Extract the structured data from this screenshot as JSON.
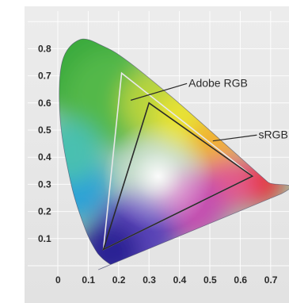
{
  "chart_data": {
    "type": "scatter",
    "title": "",
    "xlabel": "",
    "ylabel": "",
    "xlim": [
      0,
      0.75
    ],
    "ylim": [
      0,
      0.85
    ],
    "grid": true,
    "x_ticks": [
      "0",
      "0.1",
      "0.2",
      "0.3",
      "0.4",
      "0.5",
      "0.6",
      "0.7",
      "0."
    ],
    "y_ticks": [
      "0.8",
      "0.7",
      "0.6",
      "0.5",
      "0.4",
      "0.3",
      "0.2",
      "0.1"
    ],
    "spectral_locus": [
      {
        "x": 0.175,
        "y": 0.005
      },
      {
        "x": 0.174,
        "y": 0.005
      },
      {
        "x": 0.165,
        "y": 0.011
      },
      {
        "x": 0.144,
        "y": 0.03
      },
      {
        "x": 0.124,
        "y": 0.058
      },
      {
        "x": 0.091,
        "y": 0.133
      },
      {
        "x": 0.045,
        "y": 0.295
      },
      {
        "x": 0.008,
        "y": 0.538
      },
      {
        "x": 0.014,
        "y": 0.75
      },
      {
        "x": 0.074,
        "y": 0.834
      },
      {
        "x": 0.155,
        "y": 0.806
      },
      {
        "x": 0.23,
        "y": 0.754
      },
      {
        "x": 0.373,
        "y": 0.624
      },
      {
        "x": 0.512,
        "y": 0.487
      },
      {
        "x": 0.607,
        "y": 0.392
      },
      {
        "x": 0.69,
        "y": 0.309
      },
      {
        "x": 0.735,
        "y": 0.265
      }
    ],
    "series": [
      {
        "name": "Adobe RGB",
        "color": "#e8e8e8",
        "points": [
          {
            "x": 0.64,
            "y": 0.33
          },
          {
            "x": 0.21,
            "y": 0.71
          },
          {
            "x": 0.15,
            "y": 0.06
          }
        ]
      },
      {
        "name": "sRGB",
        "color": "#2a2a2a",
        "points": [
          {
            "x": 0.64,
            "y": 0.33
          },
          {
            "x": 0.3,
            "y": 0.6
          },
          {
            "x": 0.15,
            "y": 0.06
          }
        ]
      }
    ],
    "annotations": [
      {
        "text": "Adobe RGB",
        "target": {
          "x": 0.24,
          "y": 0.61
        },
        "label_at": {
          "x": 0.43,
          "y": 0.66
        }
      },
      {
        "text": "sRGB",
        "target": {
          "x": 0.51,
          "y": 0.46
        },
        "label_at": {
          "x": 0.66,
          "y": 0.47
        }
      }
    ],
    "colors": {
      "background": "#e6e6e6",
      "grid": "#ffffff",
      "tick_text": "#2a2a2a"
    }
  }
}
